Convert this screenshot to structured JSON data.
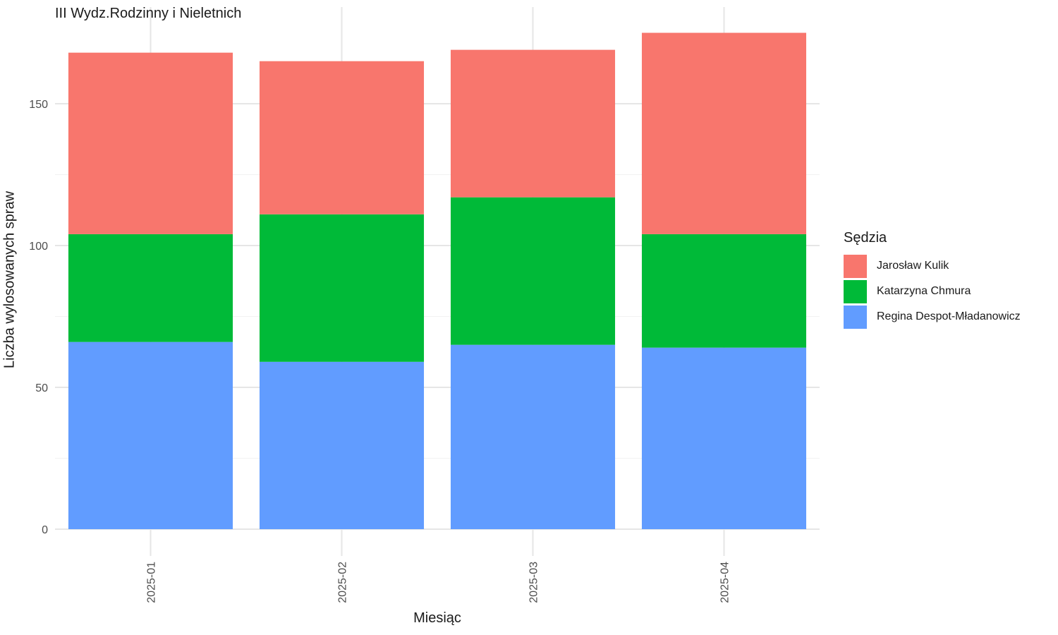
{
  "chart_data": {
    "type": "bar",
    "stacked": true,
    "title": "III Wydz.Rodzinny i Nieletnich",
    "xlabel": "Miesiąc",
    "ylabel": "Liczba wylosowanych spraw",
    "categories": [
      "2025-01",
      "2025-02",
      "2025-03",
      "2025-04"
    ],
    "ylim": [
      0,
      175
    ],
    "yticks": [
      0,
      50,
      100,
      150
    ],
    "grid": true,
    "legend_title": "Sędzia",
    "legend_position": "right",
    "series": [
      {
        "name": "Regina Despot-Mładanowicz",
        "color": "#619CFF",
        "values": [
          66,
          59,
          65,
          64
        ]
      },
      {
        "name": "Katarzyna Chmura",
        "color": "#00BA38",
        "values": [
          38,
          52,
          52,
          40
        ]
      },
      {
        "name": "Jarosław Kulik",
        "color": "#F8766D",
        "values": [
          64,
          54,
          52,
          71
        ]
      }
    ],
    "legend_order": [
      "Jarosław Kulik",
      "Katarzyna Chmura",
      "Regina Despot-Mładanowicz"
    ]
  }
}
